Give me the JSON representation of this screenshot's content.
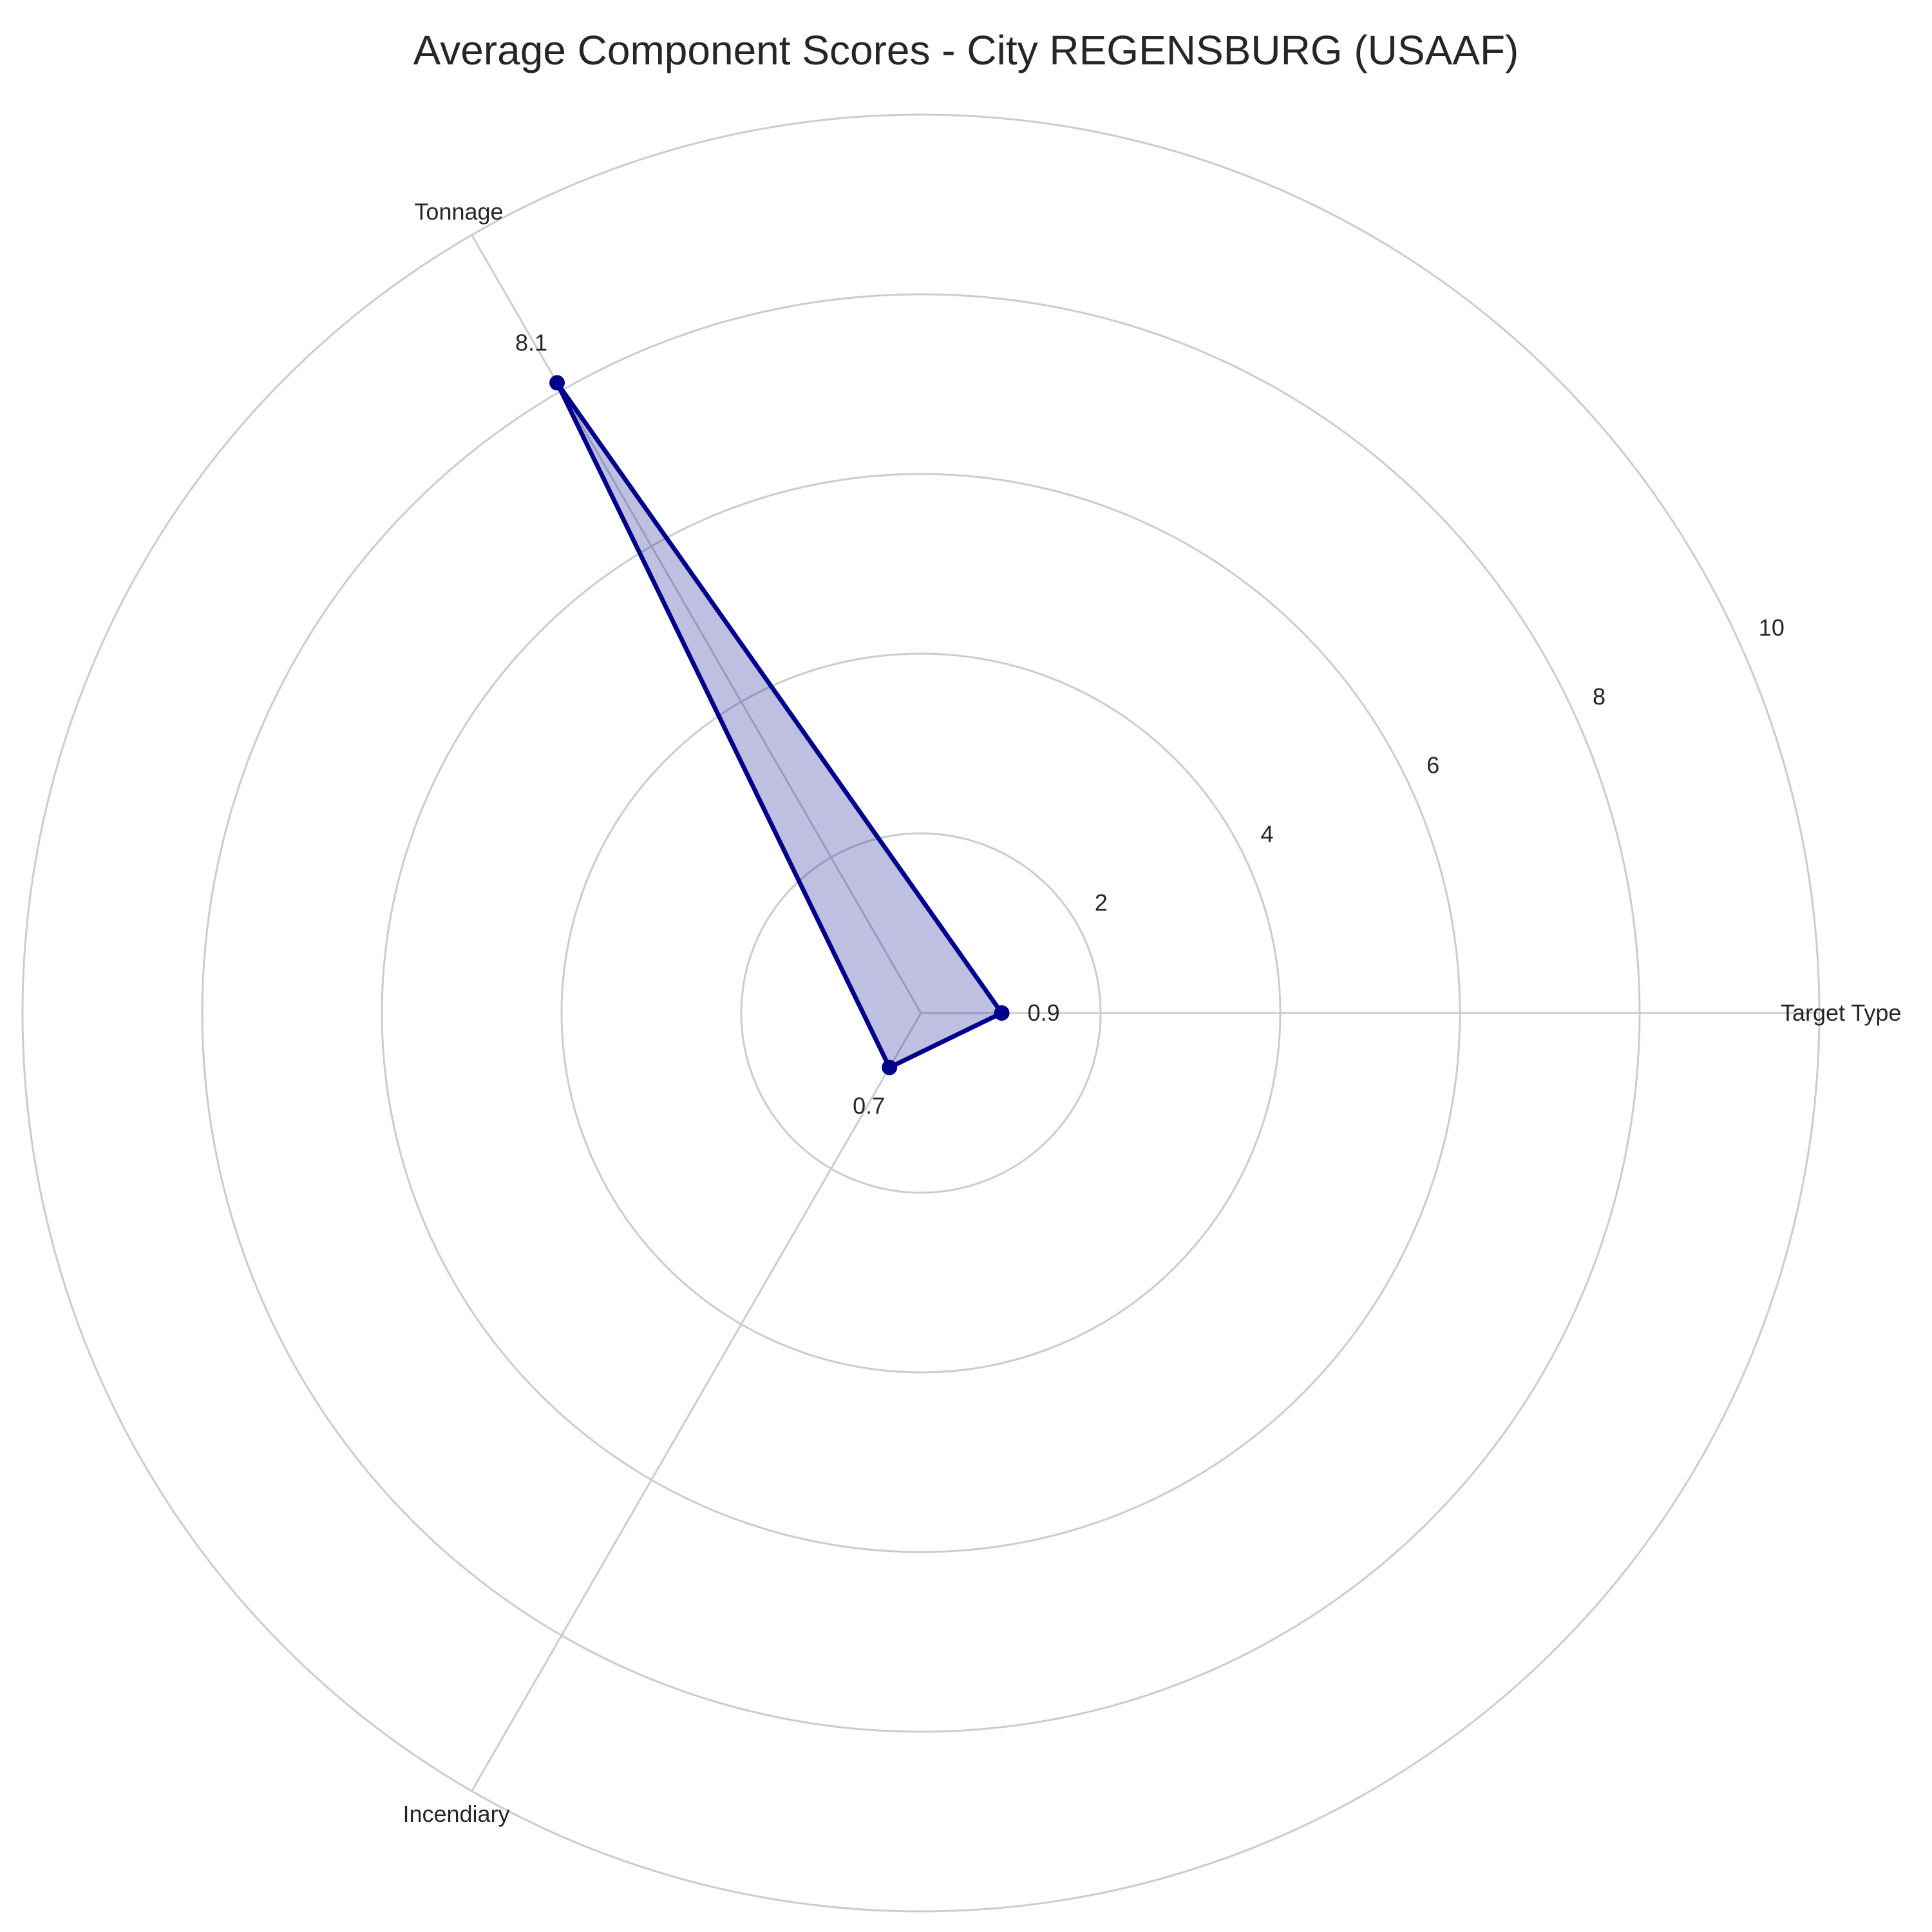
{
  "chart_data": {
    "type": "radar",
    "title": "Average Component Scores - City REGENSBURG (USAAF)",
    "categories": [
      "Target Type",
      "Tonnage",
      "Incendiary"
    ],
    "values": [
      0.9,
      8.1,
      0.7
    ],
    "value_labels": [
      "0.9",
      "8.1",
      "0.7"
    ],
    "r_ticks": [
      2,
      4,
      6,
      8,
      10
    ],
    "r_tick_labels": [
      "2",
      "4",
      "6",
      "8",
      "10"
    ],
    "rlim": [
      0,
      10
    ],
    "grid": true,
    "colors": {
      "line": "#00008b",
      "fill": "#00008b",
      "grid": "#cccccc",
      "text": "#262626"
    }
  }
}
